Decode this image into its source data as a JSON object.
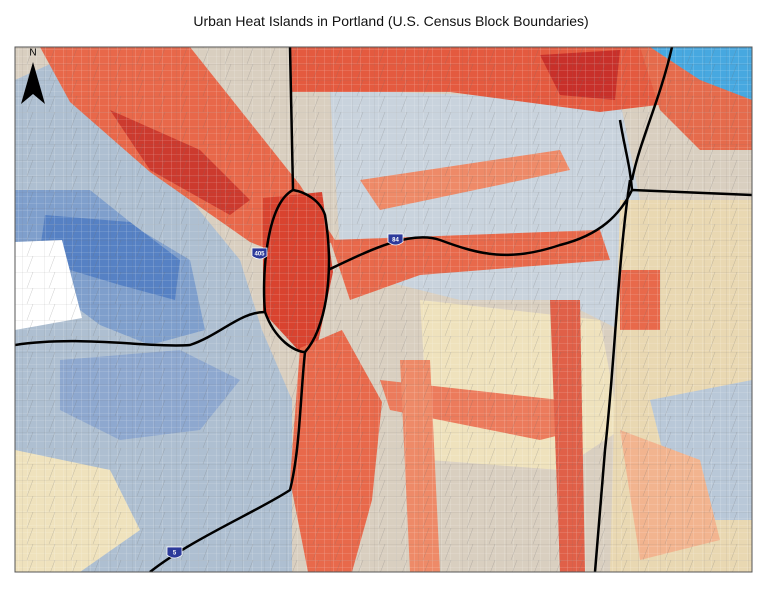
{
  "title": "Urban Heat Islands in Portland (U.S. Census Block Boundaries)",
  "north_arrow": "N",
  "highway_shields": [
    "405",
    "84",
    "5"
  ]
}
